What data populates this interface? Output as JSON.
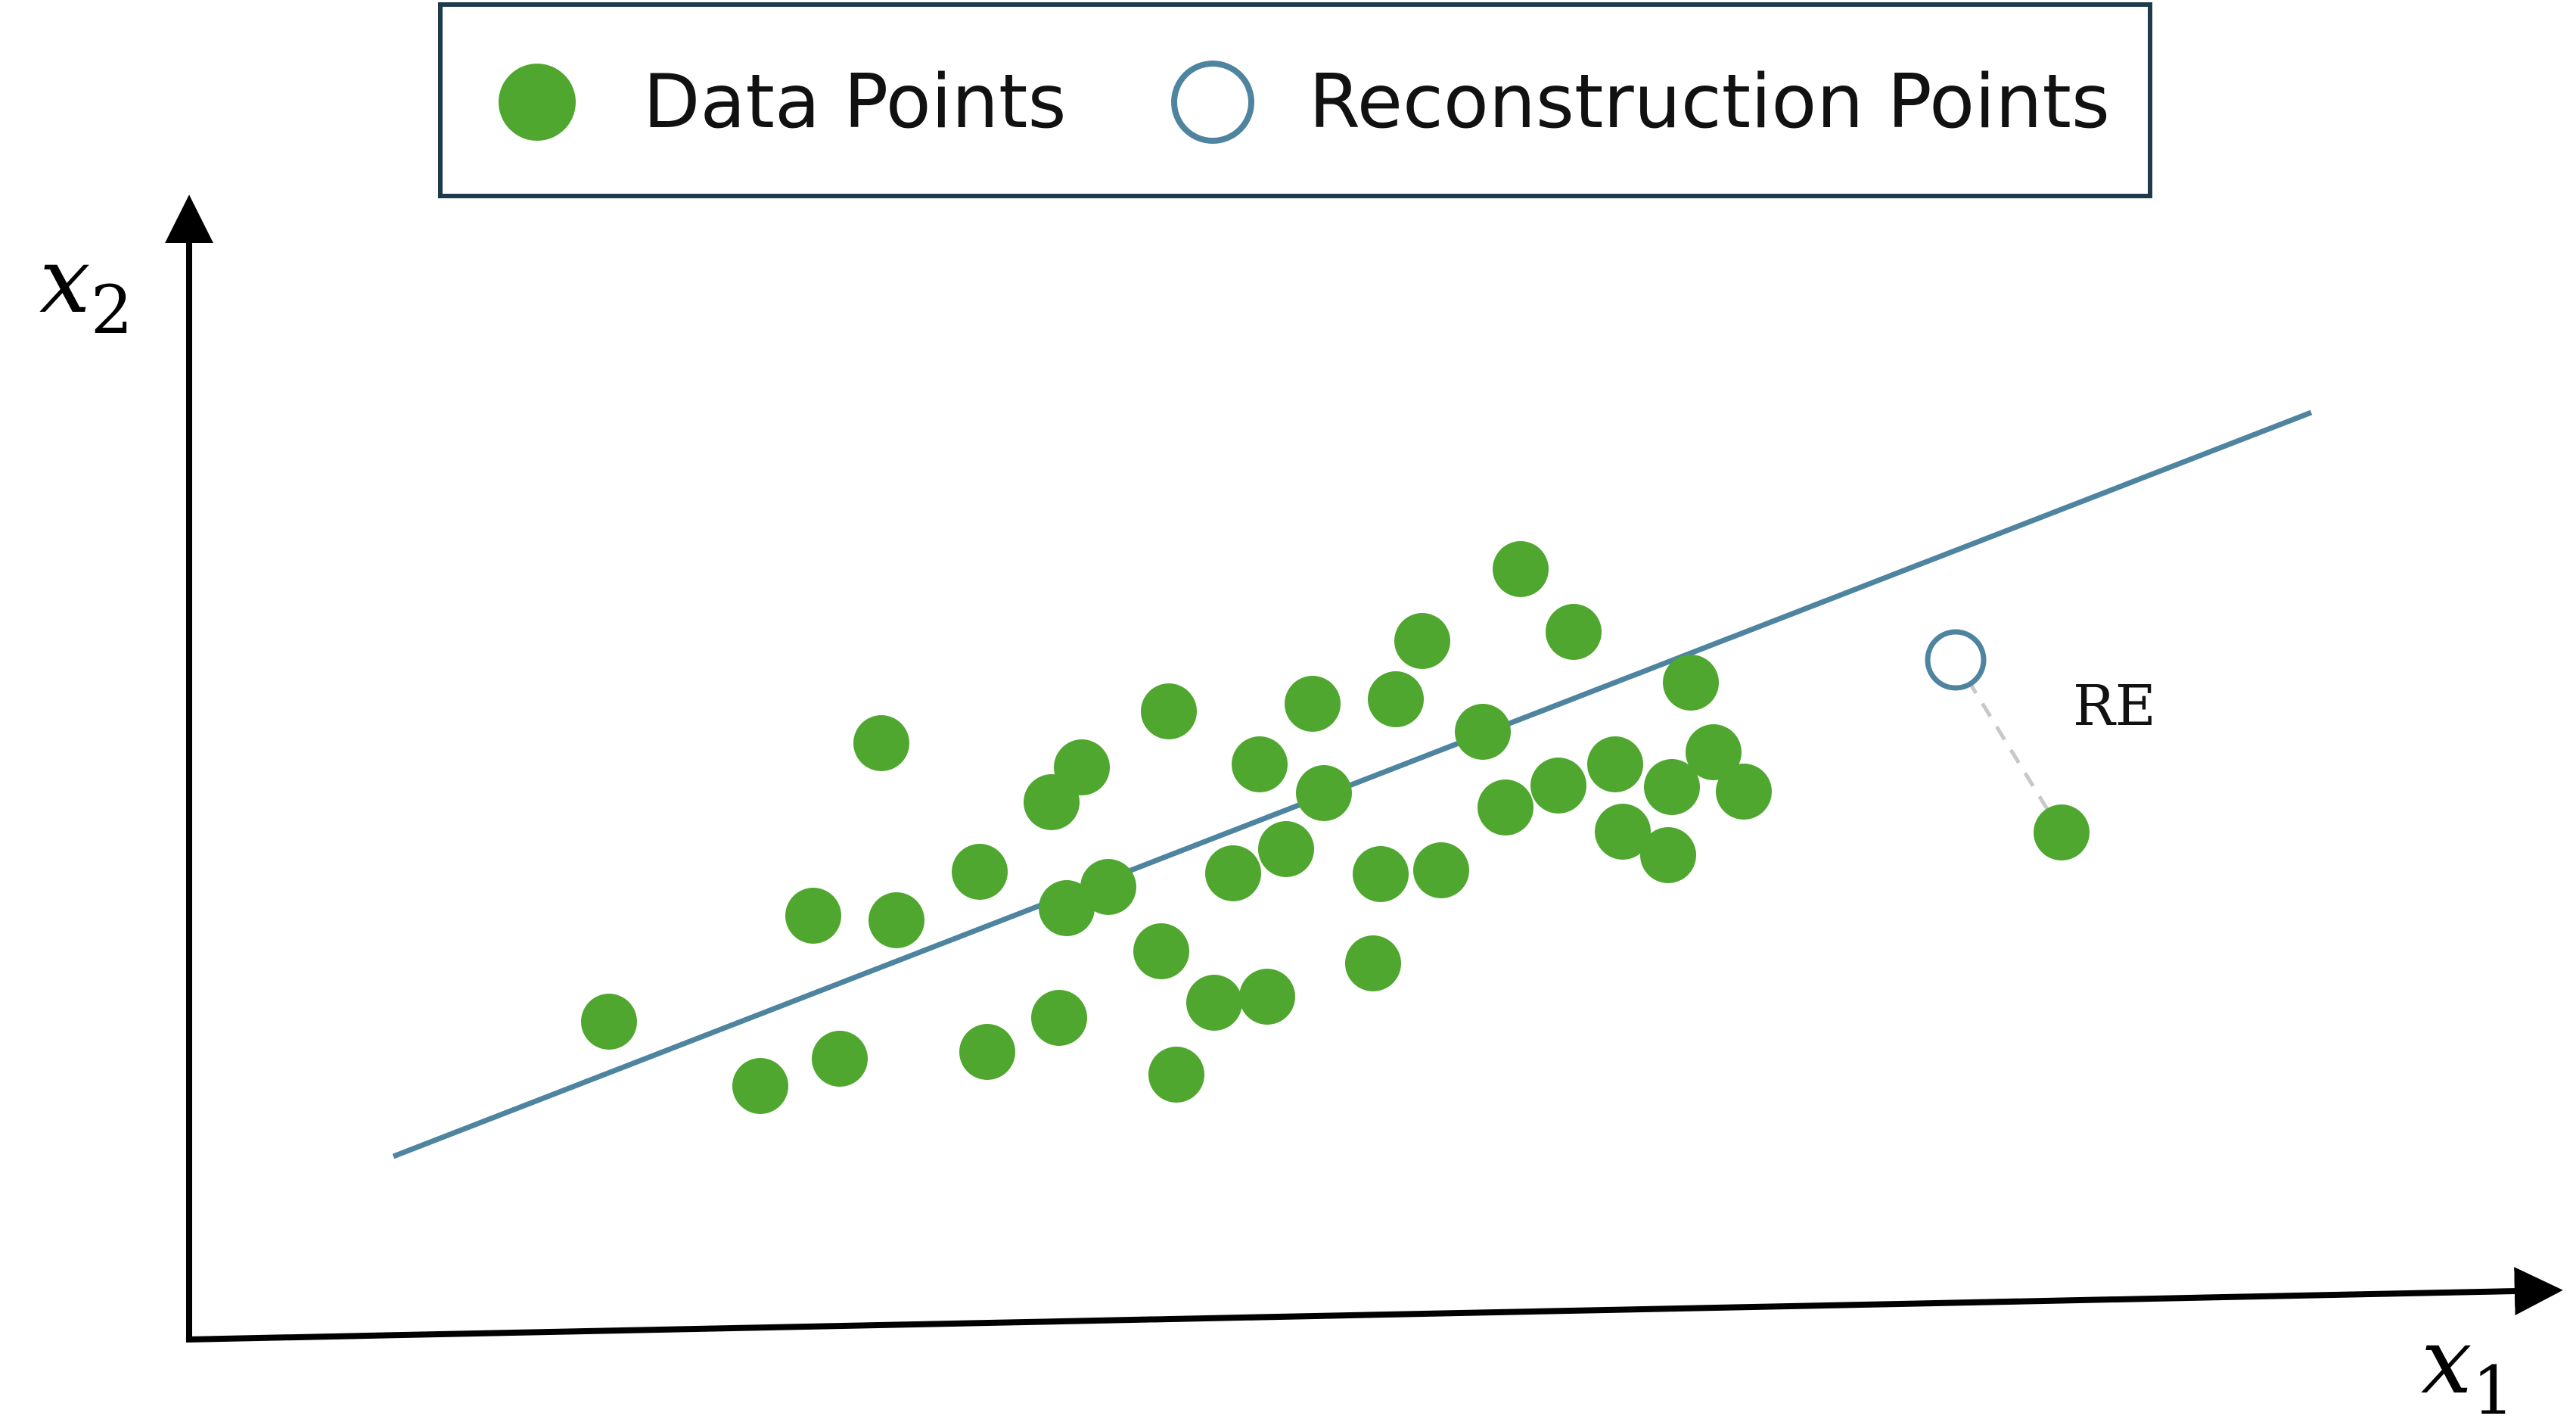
{
  "legend": {
    "data_points_label": "Data Points",
    "reconstruction_points_label": "Reconstruction Points"
  },
  "axes": {
    "x_label": "x",
    "x_subscript": "1",
    "y_label": "x",
    "y_subscript": "2"
  },
  "annotation": {
    "reconstruction_error_label": "RE"
  },
  "colors": {
    "data_point": "#4fa72f",
    "projection_line": "#4e84a0",
    "reconstruction_point_stroke": "#4e84a0",
    "error_line": "#c8c8c8",
    "axis": "#000000",
    "legend_border": "#1d3b4a"
  },
  "chart_data": {
    "type": "scatter",
    "title": "",
    "xlabel": "x1",
    "ylabel": "x2",
    "xlim": [
      0,
      3100
    ],
    "ylim": [
      0,
      1500
    ],
    "grid": false,
    "legend_position": "top-center",
    "series": [
      {
        "name": "Data Points",
        "points": [
          [
            555,
            420
          ],
          [
            755,
            335
          ],
          [
            860,
            371
          ],
          [
            1055,
            380
          ],
          [
            1150,
            425
          ],
          [
            1305,
            350
          ],
          [
            1425,
            453
          ],
          [
            1565,
            497
          ],
          [
            1285,
            513
          ],
          [
            1160,
            570
          ],
          [
            1355,
            445
          ],
          [
            1450,
            648
          ],
          [
            825,
            560
          ],
          [
            935,
            554
          ],
          [
            1215,
            598
          ],
          [
            1655,
            620
          ],
          [
            1500,
            722
          ],
          [
            1575,
            615
          ],
          [
            1045,
            618
          ],
          [
            1380,
            616
          ],
          [
            1140,
            710
          ],
          [
            1485,
            840
          ],
          [
            1955,
            640
          ],
          [
            1895,
            671
          ],
          [
            1810,
            732
          ],
          [
            1740,
            703
          ],
          [
            1985,
            868
          ],
          [
            1830,
            935
          ],
          [
            1710,
            803
          ],
          [
            1630,
            923
          ],
          [
            1885,
            760
          ],
          [
            1760,
            1018
          ],
          [
            1595,
            846
          ],
          [
            1295,
            830
          ],
          [
            1415,
            760
          ],
          [
            1960,
            730
          ],
          [
            2055,
            724
          ],
          [
            915,
            788
          ],
          [
            1180,
            756
          ],
          [
            2015,
            776
          ],
          [
            2475,
            670
          ]
        ]
      },
      {
        "name": "Reconstruction Points",
        "points": [
          [
            2335,
            898
          ]
        ]
      },
      {
        "name": "Projection Line",
        "line": [
          [
            270,
            242
          ],
          [
            2805,
            1225
          ]
        ]
      }
    ],
    "annotations": [
      {
        "text": "RE",
        "from": [
          2475,
          670
        ],
        "to": [
          2335,
          898
        ]
      }
    ]
  }
}
